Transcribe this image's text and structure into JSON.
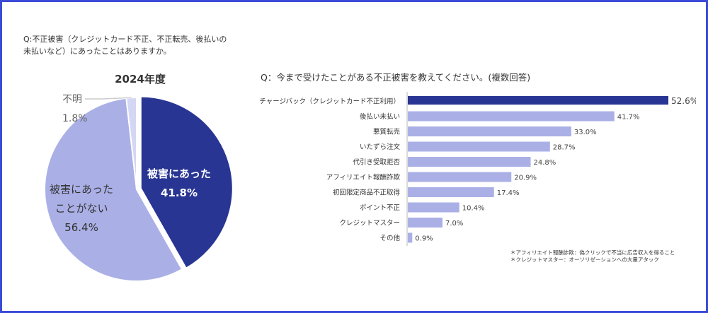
{
  "left_question": {
    "line1": "Q:不正被害（クレジットカード不正、不正転売、後払いの",
    "line2": "未払いなど）にあったことはありますか。"
  },
  "right_question": "Q：今まで受けたことがある不正被害を教えてください。(複数回答)",
  "notes": [
    "＊アフィリエイト報酬詐欺：偽クリックで不当に広告収入を得ること",
    "＊クレジットマスター：オーソリゼーションへの大量アタック"
  ],
  "colors": {
    "border": "#3b4bd8",
    "dark": "#283593",
    "light": "#aab0e6",
    "lighter": "#d4d7f3"
  },
  "chart_data": [
    {
      "type": "pie",
      "title": "2024年度",
      "slices": [
        {
          "label_lines": [
            "被害にあった"
          ],
          "value": 41.8,
          "value_label": "41.8%",
          "color": "#283593",
          "text_color": "#ffffff"
        },
        {
          "label_lines": [
            "被害にあった",
            "ことがない"
          ],
          "value": 56.4,
          "value_label": "56.4%",
          "color": "#aab0e6",
          "text_color": "#333333"
        },
        {
          "label_lines": [
            "不明"
          ],
          "value": 1.8,
          "value_label": "1.8%",
          "color": "#d4d7f3",
          "text_color": "#666666"
        }
      ]
    },
    {
      "type": "bar",
      "orientation": "horizontal",
      "title": "Q：今まで受けたことがある不正被害を教えてください。(複数回答)",
      "categories": [
        "チャージバック（クレジットカード不正利用）",
        "後払い未払い",
        "悪質転売",
        "いたずら注文",
        "代引き受取拒否",
        "アフィリエイト報酬詐欺",
        "初回限定商品不正取得",
        "ポイント不正",
        "クレジットマスター",
        "その他"
      ],
      "values": [
        52.6,
        41.7,
        33.0,
        28.7,
        24.8,
        20.9,
        17.4,
        10.4,
        7.0,
        0.9
      ],
      "value_labels": [
        "52.6%",
        "41.7%",
        "33.0%",
        "28.7%",
        "24.8%",
        "20.9%",
        "17.4%",
        "10.4%",
        "7.0%",
        "0.9%"
      ],
      "highlight_index": 0,
      "xlim": [
        0,
        52.6
      ],
      "unit": "%"
    }
  ]
}
